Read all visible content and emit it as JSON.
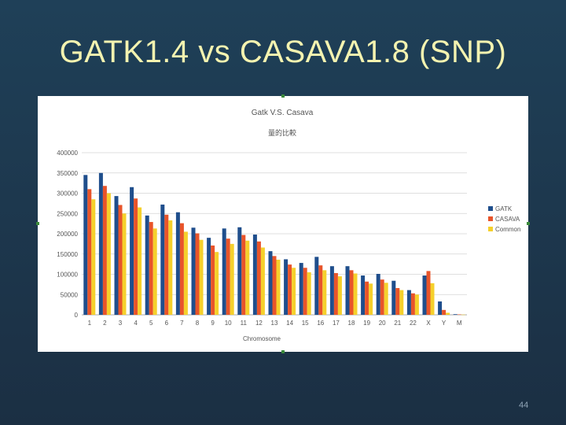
{
  "slide": {
    "title": "GATK1.4 vs CASAVA1.8 (SNP)",
    "page_number": "44"
  },
  "chart_data": {
    "type": "bar",
    "title": "Gatk V.S. Casava",
    "subtitle": "量的比較",
    "xlabel": "Chromosome",
    "ylabel": "",
    "ylim": [
      0,
      400000
    ],
    "yticks": [
      "0",
      "50000",
      "100000",
      "150000",
      "200000",
      "250000",
      "300000",
      "350000",
      "400000"
    ],
    "legend_position": "right",
    "categories": [
      "1",
      "2",
      "3",
      "4",
      "5",
      "6",
      "7",
      "8",
      "9",
      "10",
      "11",
      "12",
      "13",
      "14",
      "15",
      "16",
      "17",
      "18",
      "19",
      "20",
      "21",
      "22",
      "X",
      "Y",
      "M"
    ],
    "series": [
      {
        "name": "GATK",
        "color": "#1f4e8c",
        "values": [
          345000,
          350000,
          293000,
          315000,
          245000,
          272000,
          253000,
          215000,
          190000,
          213000,
          216000,
          198000,
          157000,
          137000,
          128000,
          143000,
          120000,
          120000,
          97000,
          101000,
          84000,
          61000,
          97000,
          33000,
          1500
        ]
      },
      {
        "name": "CASAVA",
        "color": "#e8542a",
        "values": [
          310000,
          318000,
          271000,
          287000,
          229000,
          247000,
          226000,
          201000,
          171000,
          188000,
          197000,
          181000,
          145000,
          124000,
          116000,
          122000,
          103000,
          110000,
          82000,
          87000,
          66000,
          53000,
          108000,
          12000,
          1000
        ]
      },
      {
        "name": "Common",
        "color": "#f5d02c",
        "values": [
          285000,
          300000,
          250000,
          265000,
          213000,
          233000,
          205000,
          185000,
          155000,
          175000,
          183000,
          166000,
          136000,
          116000,
          105000,
          110000,
          95000,
          102000,
          77000,
          79000,
          61000,
          50000,
          78000,
          5000,
          500
        ]
      }
    ]
  }
}
